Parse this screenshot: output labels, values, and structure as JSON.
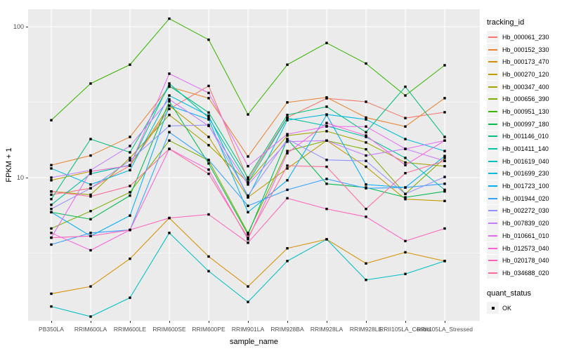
{
  "figure": {
    "background": "#FFFFFF",
    "panel_background": "#EBEBEB",
    "gridline_color": "#FFFFFF",
    "tick_color": "#333333",
    "axis_text_color": "#4D4D4D",
    "marker_color": "#000000"
  },
  "axes": {
    "x_title": "sample_name",
    "y_title": "FPKM + 1",
    "y_scale": "log10"
  },
  "legend": {
    "color_title": "tracking_id",
    "shape_title": "quant_status",
    "shape_items": [
      {
        "label": "OK",
        "marker": "black-square"
      }
    ]
  },
  "chart_data": {
    "type": "line",
    "title": "",
    "xlabel": "sample_name",
    "ylabel": "FPKM + 1",
    "y_scale": "log10",
    "ylim": [
      1.12,
      130
    ],
    "y_ticks": [
      10,
      100
    ],
    "y_minor_ticks": [
      3.162,
      31.623
    ],
    "grid": "major-and-minor-white-on-gray",
    "legend_position": "right",
    "marker": "small-black-square",
    "categories": [
      "PB350LA",
      "RRIM600LA",
      "RRIM600LE",
      "RRIM600SE",
      "RRIM600PE",
      "RRIM901LA",
      "RRIM928BA",
      "RRIM928LA",
      "RRIM928LE",
      "RRII105LA_Control",
      "RRII105LA_Stressed"
    ],
    "series": [
      {
        "name": "Hb_000061_230",
        "color": "#F8766D",
        "values": [
          7.7,
          8.5,
          12.0,
          28.5,
          40.5,
          9.7,
          25.0,
          33.5,
          31.8,
          24.8,
          27.1
        ]
      },
      {
        "name": "Hb_000152_330",
        "color": "#EA8331",
        "values": [
          12.1,
          14.0,
          18.6,
          40.0,
          33.6,
          13.8,
          31.5,
          34.0,
          25.0,
          21.8,
          33.6
        ]
      },
      {
        "name": "Hb_000173_470",
        "color": "#D89000",
        "values": [
          1.7,
          1.9,
          2.9,
          5.4,
          3.0,
          1.9,
          3.4,
          3.9,
          2.7,
          3.2,
          2.8
        ]
      },
      {
        "name": "Hb_000270_120",
        "color": "#C09B00",
        "values": [
          9.6,
          11.0,
          12.0,
          30.0,
          18.6,
          7.4,
          11.5,
          17.6,
          11.8,
          7.2,
          7.0
        ]
      },
      {
        "name": "Hb_000347_400",
        "color": "#A3A500",
        "values": [
          8.1,
          7.7,
          13.5,
          26.0,
          16.4,
          9.3,
          19.0,
          20.3,
          17.1,
          12.6,
          11.9
        ]
      },
      {
        "name": "Hb_000656_390",
        "color": "#7CAE00",
        "values": [
          4.6,
          6.0,
          8.0,
          17.6,
          13.0,
          4.3,
          15.0,
          17.6,
          15.4,
          7.8,
          13.5
        ]
      },
      {
        "name": "Hb_000951_130",
        "color": "#39B600",
        "values": [
          24.0,
          42.0,
          56.0,
          113.0,
          82.0,
          26.2,
          56.0,
          78.0,
          57.0,
          35.0,
          55.5
        ]
      },
      {
        "name": "Hb_000997_180",
        "color": "#00BB4E",
        "values": [
          5.9,
          5.3,
          7.6,
          32.0,
          12.4,
          4.2,
          18.0,
          9.1,
          8.6,
          7.4,
          8.1
        ]
      },
      {
        "name": "Hb_001146_010",
        "color": "#00BF7D",
        "values": [
          7.2,
          18.0,
          14.7,
          40.5,
          27.0,
          10.0,
          26.0,
          29.5,
          20.0,
          40.0,
          18.6
        ]
      },
      {
        "name": "Hb_001411_140",
        "color": "#00C1A3",
        "values": [
          6.6,
          10.6,
          12.1,
          42.0,
          25.0,
          9.3,
          24.8,
          22.0,
          18.6,
          13.5,
          8.3
        ]
      },
      {
        "name": "Hb_001619_040",
        "color": "#00BFC4",
        "values": [
          1.4,
          1.2,
          1.6,
          4.3,
          2.4,
          1.5,
          2.8,
          3.9,
          2.1,
          2.3,
          2.8
        ]
      },
      {
        "name": "Hb_001699_230",
        "color": "#00BAE0",
        "values": [
          11.5,
          9.0,
          11.2,
          35.0,
          25.7,
          7.4,
          24.0,
          26.2,
          24.3,
          18.0,
          15.0
        ]
      },
      {
        "name": "Hb_001723_100",
        "color": "#00B0F6",
        "values": [
          5.9,
          4.1,
          5.6,
          30.0,
          24.3,
          5.9,
          9.6,
          26.0,
          9.0,
          8.6,
          13.9
        ]
      },
      {
        "name": "Hb_001944_020",
        "color": "#35A2FF",
        "values": [
          3.6,
          4.3,
          4.5,
          20.0,
          13.1,
          6.5,
          8.3,
          9.8,
          8.5,
          8.6,
          9.1
        ]
      },
      {
        "name": "Hb_002272_030",
        "color": "#9590FF",
        "values": [
          6.2,
          8.5,
          13.0,
          22.0,
          22.3,
          7.6,
          18.0,
          13.1,
          12.9,
          7.8,
          10.1
        ]
      },
      {
        "name": "Hb_007839_020",
        "color": "#C77CFF",
        "values": [
          10.0,
          11.2,
          16.2,
          33.0,
          22.0,
          9.0,
          17.3,
          17.6,
          14.0,
          15.5,
          12.9
        ]
      },
      {
        "name": "Hb_010661_010",
        "color": "#E76BF3",
        "values": [
          4.0,
          11.0,
          12.0,
          48.8,
          36.4,
          11.9,
          19.4,
          21.8,
          21.8,
          15.5,
          17.6
        ]
      },
      {
        "name": "Hb_012573_040",
        "color": "#FA62DB",
        "values": [
          4.3,
          3.3,
          4.5,
          15.5,
          11.3,
          3.9,
          14.5,
          23.0,
          19.0,
          12.1,
          17.6
        ]
      },
      {
        "name": "Hb_020178_040",
        "color": "#FF62BC",
        "values": [
          4.0,
          4.1,
          4.5,
          5.4,
          5.7,
          3.7,
          7.3,
          6.2,
          5.5,
          3.8,
          4.6
        ]
      },
      {
        "name": "Hb_034688_020",
        "color": "#FF6A98",
        "values": [
          8.1,
          7.5,
          8.8,
          15.5,
          10.6,
          4.0,
          12.0,
          11.8,
          6.2,
          10.7,
          12.9
        ]
      }
    ]
  }
}
